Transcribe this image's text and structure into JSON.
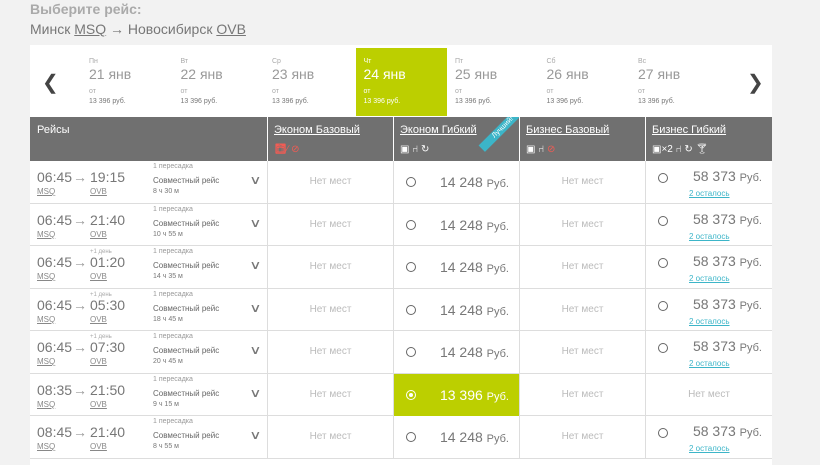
{
  "page": {
    "title": "Выберите рейс:"
  },
  "route": {
    "from_city": "Минск",
    "from_code": "MSQ",
    "arrow": "→",
    "to_city": "Новосибирск",
    "to_code": "OVB"
  },
  "dates": [
    {
      "dow": "Пн",
      "date": "21 янв",
      "from": "от",
      "price": "13 396 руб.",
      "active": false
    },
    {
      "dow": "Вт",
      "date": "22 янв",
      "from": "от",
      "price": "13 396 руб.",
      "active": false
    },
    {
      "dow": "Ср",
      "date": "23 янв",
      "from": "от",
      "price": "13 396 руб.",
      "active": false
    },
    {
      "dow": "Чт",
      "date": "24 янв",
      "from": "от",
      "price": "13 396 руб.",
      "active": true
    },
    {
      "dow": "Пт",
      "date": "25 янв",
      "from": "от",
      "price": "13 396 руб.",
      "active": false
    },
    {
      "dow": "Сб",
      "date": "26 янв",
      "from": "от",
      "price": "13 396 руб.",
      "active": false
    },
    {
      "dow": "Вс",
      "date": "27 янв",
      "from": "от",
      "price": "13 396 руб.",
      "active": false
    }
  ],
  "header": {
    "flights": "Рейсы",
    "fares": [
      {
        "name": "Эконом Базовый",
        "icons": "suitcase-crossed,change-crossed"
      },
      {
        "name": "Эконом Гибкий",
        "badge": "Лучший!",
        "icons": "suitcase,seat,change"
      },
      {
        "name": "Бизнес Базовый",
        "icons": "suitcase,seat,change-crossed"
      },
      {
        "name": "Бизнес Гибкий",
        "icons": "suitcase-x2,seat,change,cocktail",
        "x2": "×2"
      }
    ]
  },
  "labels": {
    "no_seats": "Нет мест",
    "currency": "Руб.",
    "carrier": "Совместный рейс",
    "transfer": "1 пересадка",
    "plus_day": "+1 день"
  },
  "flights": [
    {
      "dep": "06:45",
      "arr": "19:15",
      "dep_code": "MSQ",
      "arr_code": "OVB",
      "plus_day": false,
      "duration": "8 ч 30 м",
      "eco_base": null,
      "eco_flex": "14 248",
      "eco_flex_sel": false,
      "bus_base": null,
      "bus_flex": "58 373",
      "bus_left": "2 осталось"
    },
    {
      "dep": "06:45",
      "arr": "21:40",
      "dep_code": "MSQ",
      "arr_code": "OVB",
      "plus_day": false,
      "duration": "10 ч 55 м",
      "eco_base": null,
      "eco_flex": "14 248",
      "eco_flex_sel": false,
      "bus_base": null,
      "bus_flex": "58 373",
      "bus_left": "2 осталось"
    },
    {
      "dep": "06:45",
      "arr": "01:20",
      "dep_code": "MSQ",
      "arr_code": "OVB",
      "plus_day": true,
      "duration": "14 ч 35 м",
      "eco_base": null,
      "eco_flex": "14 248",
      "eco_flex_sel": false,
      "bus_base": null,
      "bus_flex": "58 373",
      "bus_left": "2 осталось"
    },
    {
      "dep": "06:45",
      "arr": "05:30",
      "dep_code": "MSQ",
      "arr_code": "OVB",
      "plus_day": true,
      "duration": "18 ч 45 м",
      "eco_base": null,
      "eco_flex": "14 248",
      "eco_flex_sel": false,
      "bus_base": null,
      "bus_flex": "58 373",
      "bus_left": "2 осталось"
    },
    {
      "dep": "06:45",
      "arr": "07:30",
      "dep_code": "MSQ",
      "arr_code": "OVB",
      "plus_day": true,
      "duration": "20 ч 45 м",
      "eco_base": null,
      "eco_flex": "14 248",
      "eco_flex_sel": false,
      "bus_base": null,
      "bus_flex": "58 373",
      "bus_left": "2 осталось"
    },
    {
      "dep": "08:35",
      "arr": "21:50",
      "dep_code": "MSQ",
      "arr_code": "OVB",
      "plus_day": false,
      "duration": "9 ч 15 м",
      "eco_base": null,
      "eco_flex": "13 396",
      "eco_flex_sel": true,
      "bus_base": null,
      "bus_flex": null,
      "bus_left": null
    },
    {
      "dep": "08:45",
      "arr": "21:40",
      "dep_code": "MSQ",
      "arr_code": "OVB",
      "plus_day": false,
      "duration": "8 ч 55 м",
      "eco_base": null,
      "eco_flex": "14 248",
      "eco_flex_sel": false,
      "bus_base": null,
      "bus_flex": "58 373",
      "bus_left": "2 осталось"
    }
  ],
  "colors": {
    "accent": "#bccf00",
    "header_bg": "#707070",
    "link": "#3cb5c8",
    "badge": "#3cb5c8"
  }
}
